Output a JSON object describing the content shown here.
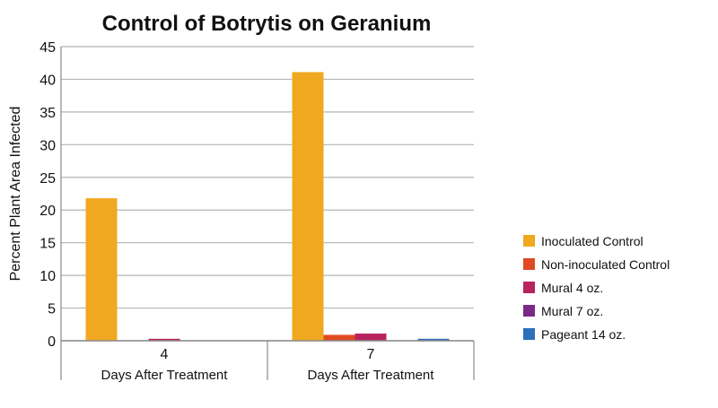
{
  "chart_data": {
    "type": "bar",
    "title": "Control of Botrytis on Geranium",
    "ylabel": "Percent Plant Area Infected",
    "xlabel": "",
    "ylim": [
      0,
      45
    ],
    "yticks": [
      0,
      5,
      10,
      15,
      20,
      25,
      30,
      35,
      40,
      45
    ],
    "grid": true,
    "legend_position": "right",
    "categories": [
      {
        "label": "4",
        "sublabel": "Days After Treatment"
      },
      {
        "label": "7",
        "sublabel": "Days After Treatment"
      }
    ],
    "series": [
      {
        "name": "Inoculated Control",
        "color": "#F0A820",
        "values": [
          21.8,
          41.1
        ]
      },
      {
        "name": "Non-inoculated Control",
        "color": "#E04A22",
        "values": [
          0,
          0.9
        ]
      },
      {
        "name": "Mural 4 oz.",
        "color": "#B8245E",
        "values": [
          0.3,
          1.1
        ]
      },
      {
        "name": "Mural 7 oz.",
        "color": "#7A2A86",
        "values": [
          0,
          0
        ]
      },
      {
        "name": "Pageant 14 oz.",
        "color": "#2D6FB8",
        "values": [
          0,
          0.3
        ]
      }
    ]
  }
}
